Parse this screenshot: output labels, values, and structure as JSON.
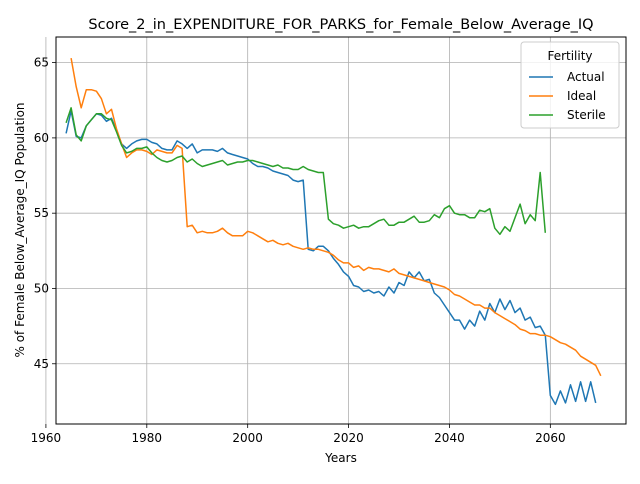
{
  "chart_data": {
    "type": "line",
    "title": "Score_2_in_EXPENDITURE_FOR_PARKS_for_Female_Below_Average_IQ",
    "xlabel": "Years",
    "ylabel": "% of Female Below_Average_IQ Population",
    "xlim": [
      1962,
      2075
    ],
    "ylim": [
      41,
      66.7
    ],
    "xticks": [
      1960,
      1980,
      2000,
      2020,
      2040,
      2060
    ],
    "yticks": [
      45,
      50,
      55,
      60,
      65
    ],
    "grid": true,
    "legend": {
      "title": "Fertility",
      "placement": "top-right"
    },
    "series": [
      {
        "name": "Actual",
        "color": "#1f77b4",
        "x": [
          1964,
          1965,
          1966,
          1967,
          1968,
          1969,
          1970,
          1971,
          1972,
          1973,
          1974,
          1975,
          1976,
          1977,
          1978,
          1979,
          1980,
          1981,
          1982,
          1983,
          1984,
          1985,
          1986,
          1987,
          1988,
          1989,
          1990,
          1991,
          1992,
          1993,
          1994,
          1995,
          1996,
          1997,
          1998,
          1999,
          2000,
          2001,
          2002,
          2003,
          2004,
          2005,
          2006,
          2007,
          2008,
          2009,
          2010,
          2011,
          2012,
          2013,
          2014,
          2015,
          2016,
          2017,
          2018,
          2019,
          2020,
          2021,
          2022,
          2023,
          2024,
          2025,
          2026,
          2027,
          2028,
          2029,
          2030,
          2031,
          2032,
          2033,
          2034,
          2035,
          2036,
          2037,
          2038,
          2039,
          2040,
          2041,
          2042,
          2043,
          2044,
          2045,
          2046,
          2047,
          2048,
          2049,
          2050,
          2051,
          2052,
          2053,
          2054,
          2055,
          2056,
          2057,
          2058,
          2059,
          2060,
          2061,
          2062,
          2063,
          2064,
          2065,
          2066,
          2067,
          2068,
          2069,
          2070
        ],
        "y": [
          60.3,
          61.8,
          60.1,
          60.0,
          60.8,
          61.2,
          61.6,
          61.5,
          61.1,
          61.3,
          60.5,
          59.6,
          59.3,
          59.6,
          59.8,
          59.9,
          59.9,
          59.7,
          59.6,
          59.3,
          59.2,
          59.2,
          59.8,
          59.6,
          59.3,
          59.6,
          59.0,
          59.2,
          59.2,
          59.2,
          59.1,
          59.3,
          59.0,
          58.9,
          58.8,
          58.7,
          58.6,
          58.3,
          58.1,
          58.1,
          58.0,
          57.8,
          57.7,
          57.6,
          57.5,
          57.2,
          57.1,
          57.2,
          52.6,
          52.5,
          52.8,
          52.8,
          52.5,
          52.0,
          51.6,
          51.1,
          50.8,
          50.2,
          50.1,
          49.8,
          49.9,
          49.7,
          49.8,
          49.5,
          50.1,
          49.7,
          50.4,
          50.2,
          51.1,
          50.7,
          51.1,
          50.5,
          50.6,
          49.7,
          49.4,
          48.9,
          48.4,
          47.9,
          47.9,
          47.3,
          47.9,
          47.5,
          48.5,
          47.9,
          49.0,
          48.4,
          49.3,
          48.6,
          49.2,
          48.4,
          48.7,
          47.9,
          48.1,
          47.4,
          47.5,
          46.9,
          42.9,
          42.3,
          43.2,
          42.4,
          43.6,
          42.5,
          43.8,
          42.5,
          43.8,
          42.4,
          null
        ]
      },
      {
        "name": "Ideal",
        "color": "#ff7f0e",
        "x": [
          1965,
          1966,
          1967,
          1968,
          1969,
          1970,
          1971,
          1972,
          1973,
          1974,
          1975,
          1976,
          1977,
          1978,
          1979,
          1980,
          1981,
          1982,
          1983,
          1984,
          1985,
          1986,
          1987,
          1988,
          1989,
          1990,
          1991,
          1992,
          1993,
          1994,
          1995,
          1996,
          1997,
          1998,
          1999,
          2000,
          2001,
          2002,
          2003,
          2004,
          2005,
          2006,
          2007,
          2008,
          2009,
          2010,
          2011,
          2012,
          2013,
          2014,
          2015,
          2016,
          2017,
          2018,
          2019,
          2020,
          2021,
          2022,
          2023,
          2024,
          2025,
          2026,
          2027,
          2028,
          2029,
          2030,
          2031,
          2032,
          2033,
          2034,
          2035,
          2036,
          2037,
          2038,
          2039,
          2040,
          2041,
          2042,
          2043,
          2044,
          2045,
          2046,
          2047,
          2048,
          2049,
          2050,
          2051,
          2052,
          2053,
          2054,
          2055,
          2056,
          2057,
          2058,
          2059,
          2060,
          2061,
          2062,
          2063,
          2064,
          2065,
          2066,
          2067,
          2068,
          2069,
          2070
        ],
        "y": [
          65.3,
          63.4,
          62.0,
          63.2,
          63.2,
          63.1,
          62.6,
          61.6,
          61.9,
          60.6,
          59.6,
          58.7,
          59.0,
          59.2,
          59.2,
          59.1,
          58.9,
          59.2,
          59.1,
          59.0,
          59.0,
          59.5,
          59.3,
          54.1,
          54.2,
          53.7,
          53.8,
          53.7,
          53.7,
          53.8,
          54.0,
          53.7,
          53.5,
          53.5,
          53.5,
          53.8,
          53.7,
          53.5,
          53.3,
          53.1,
          53.2,
          53.0,
          52.9,
          53.0,
          52.8,
          52.7,
          52.6,
          52.7,
          52.6,
          52.6,
          52.5,
          52.4,
          52.2,
          51.9,
          51.7,
          51.7,
          51.4,
          51.5,
          51.2,
          51.4,
          51.3,
          51.3,
          51.2,
          51.1,
          51.3,
          51.0,
          50.9,
          50.8,
          50.7,
          50.6,
          50.5,
          50.4,
          50.3,
          50.2,
          50.1,
          49.9,
          49.6,
          49.5,
          49.3,
          49.1,
          48.9,
          48.9,
          48.7,
          48.7,
          48.4,
          48.2,
          48.0,
          47.8,
          47.6,
          47.3,
          47.2,
          47.0,
          47.0,
          46.9,
          46.9,
          46.8,
          46.6,
          46.4,
          46.3,
          46.1,
          45.9,
          45.5,
          45.3,
          45.1,
          44.9,
          44.2
        ]
      },
      {
        "name": "Sterile",
        "color": "#2ca02c",
        "x": [
          1964,
          1965,
          1966,
          1967,
          1968,
          1969,
          1970,
          1971,
          1972,
          1973,
          1974,
          1975,
          1976,
          1977,
          1978,
          1979,
          1980,
          1981,
          1982,
          1983,
          1984,
          1985,
          1986,
          1987,
          1988,
          1989,
          1990,
          1991,
          1992,
          1993,
          1994,
          1995,
          1996,
          1997,
          1998,
          1999,
          2000,
          2001,
          2002,
          2003,
          2004,
          2005,
          2006,
          2007,
          2008,
          2009,
          2010,
          2011,
          2012,
          2013,
          2014,
          2015,
          2016,
          2017,
          2018,
          2019,
          2020,
          2021,
          2022,
          2023,
          2024,
          2025,
          2026,
          2027,
          2028,
          2029,
          2030,
          2031,
          2032,
          2033,
          2034,
          2035,
          2036,
          2037,
          2038,
          2039,
          2040,
          2041,
          2042,
          2043,
          2044,
          2045,
          2046,
          2047,
          2048,
          2049,
          2050,
          2051,
          2052,
          2053,
          2054,
          2055,
          2056,
          2057,
          2058,
          2059
        ],
        "y": [
          61.0,
          62.0,
          60.2,
          59.8,
          60.8,
          61.2,
          61.6,
          61.6,
          61.3,
          61.2,
          60.4,
          59.5,
          59.0,
          59.1,
          59.3,
          59.3,
          59.4,
          59.0,
          58.7,
          58.5,
          58.4,
          58.5,
          58.7,
          58.8,
          58.4,
          58.6,
          58.3,
          58.1,
          58.2,
          58.3,
          58.4,
          58.5,
          58.2,
          58.3,
          58.4,
          58.4,
          58.5,
          58.5,
          58.4,
          58.3,
          58.2,
          58.1,
          58.2,
          58.0,
          58.0,
          57.9,
          57.9,
          58.1,
          57.9,
          57.8,
          57.7,
          57.7,
          54.6,
          54.3,
          54.2,
          54.0,
          54.1,
          54.2,
          54.0,
          54.1,
          54.1,
          54.3,
          54.5,
          54.6,
          54.2,
          54.2,
          54.4,
          54.4,
          54.6,
          54.8,
          54.4,
          54.4,
          54.5,
          54.9,
          54.7,
          55.3,
          55.5,
          55.0,
          54.9,
          54.9,
          54.7,
          54.7,
          55.2,
          55.1,
          55.3,
          54.0,
          53.6,
          54.1,
          53.8,
          54.7,
          55.6,
          54.3,
          54.9,
          54.5,
          57.7,
          53.7
        ]
      }
    ]
  }
}
